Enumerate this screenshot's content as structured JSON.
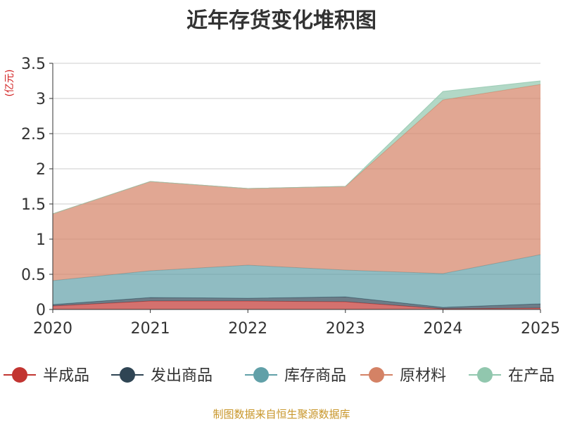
{
  "chart_data": {
    "type": "area",
    "title": "近年存货变化堆积图",
    "ylabel": "(亿元)",
    "ylim": [
      0,
      3.5
    ],
    "y_ticks": [
      "0",
      "0.5",
      "1",
      "1.5",
      "2",
      "2.5",
      "3",
      "3.5"
    ],
    "x": [
      "2020",
      "2021",
      "2022",
      "2023",
      "2024",
      "2025"
    ],
    "stacked": true,
    "grid": true,
    "legend_position": "bottom",
    "series": [
      {
        "name": "半成品",
        "color": "#c23531",
        "values": [
          0.05,
          0.12,
          0.12,
          0.11,
          0.01,
          0.02
        ]
      },
      {
        "name": "发出商品",
        "color": "#2f4554",
        "values": [
          0.02,
          0.05,
          0.04,
          0.07,
          0.02,
          0.06
        ]
      },
      {
        "name": "库存商品",
        "color": "#61a0a8",
        "values": [
          0.34,
          0.38,
          0.47,
          0.38,
          0.48,
          0.7
        ]
      },
      {
        "name": "原材料",
        "color": "#d48265",
        "values": [
          0.95,
          1.27,
          1.09,
          1.19,
          2.47,
          2.42
        ]
      },
      {
        "name": "在产品",
        "color": "#91c7ae",
        "values": [
          0.0,
          0.0,
          0.0,
          0.0,
          0.12,
          0.05
        ]
      }
    ]
  },
  "source_note": "制图数据来自恒生聚源数据库"
}
